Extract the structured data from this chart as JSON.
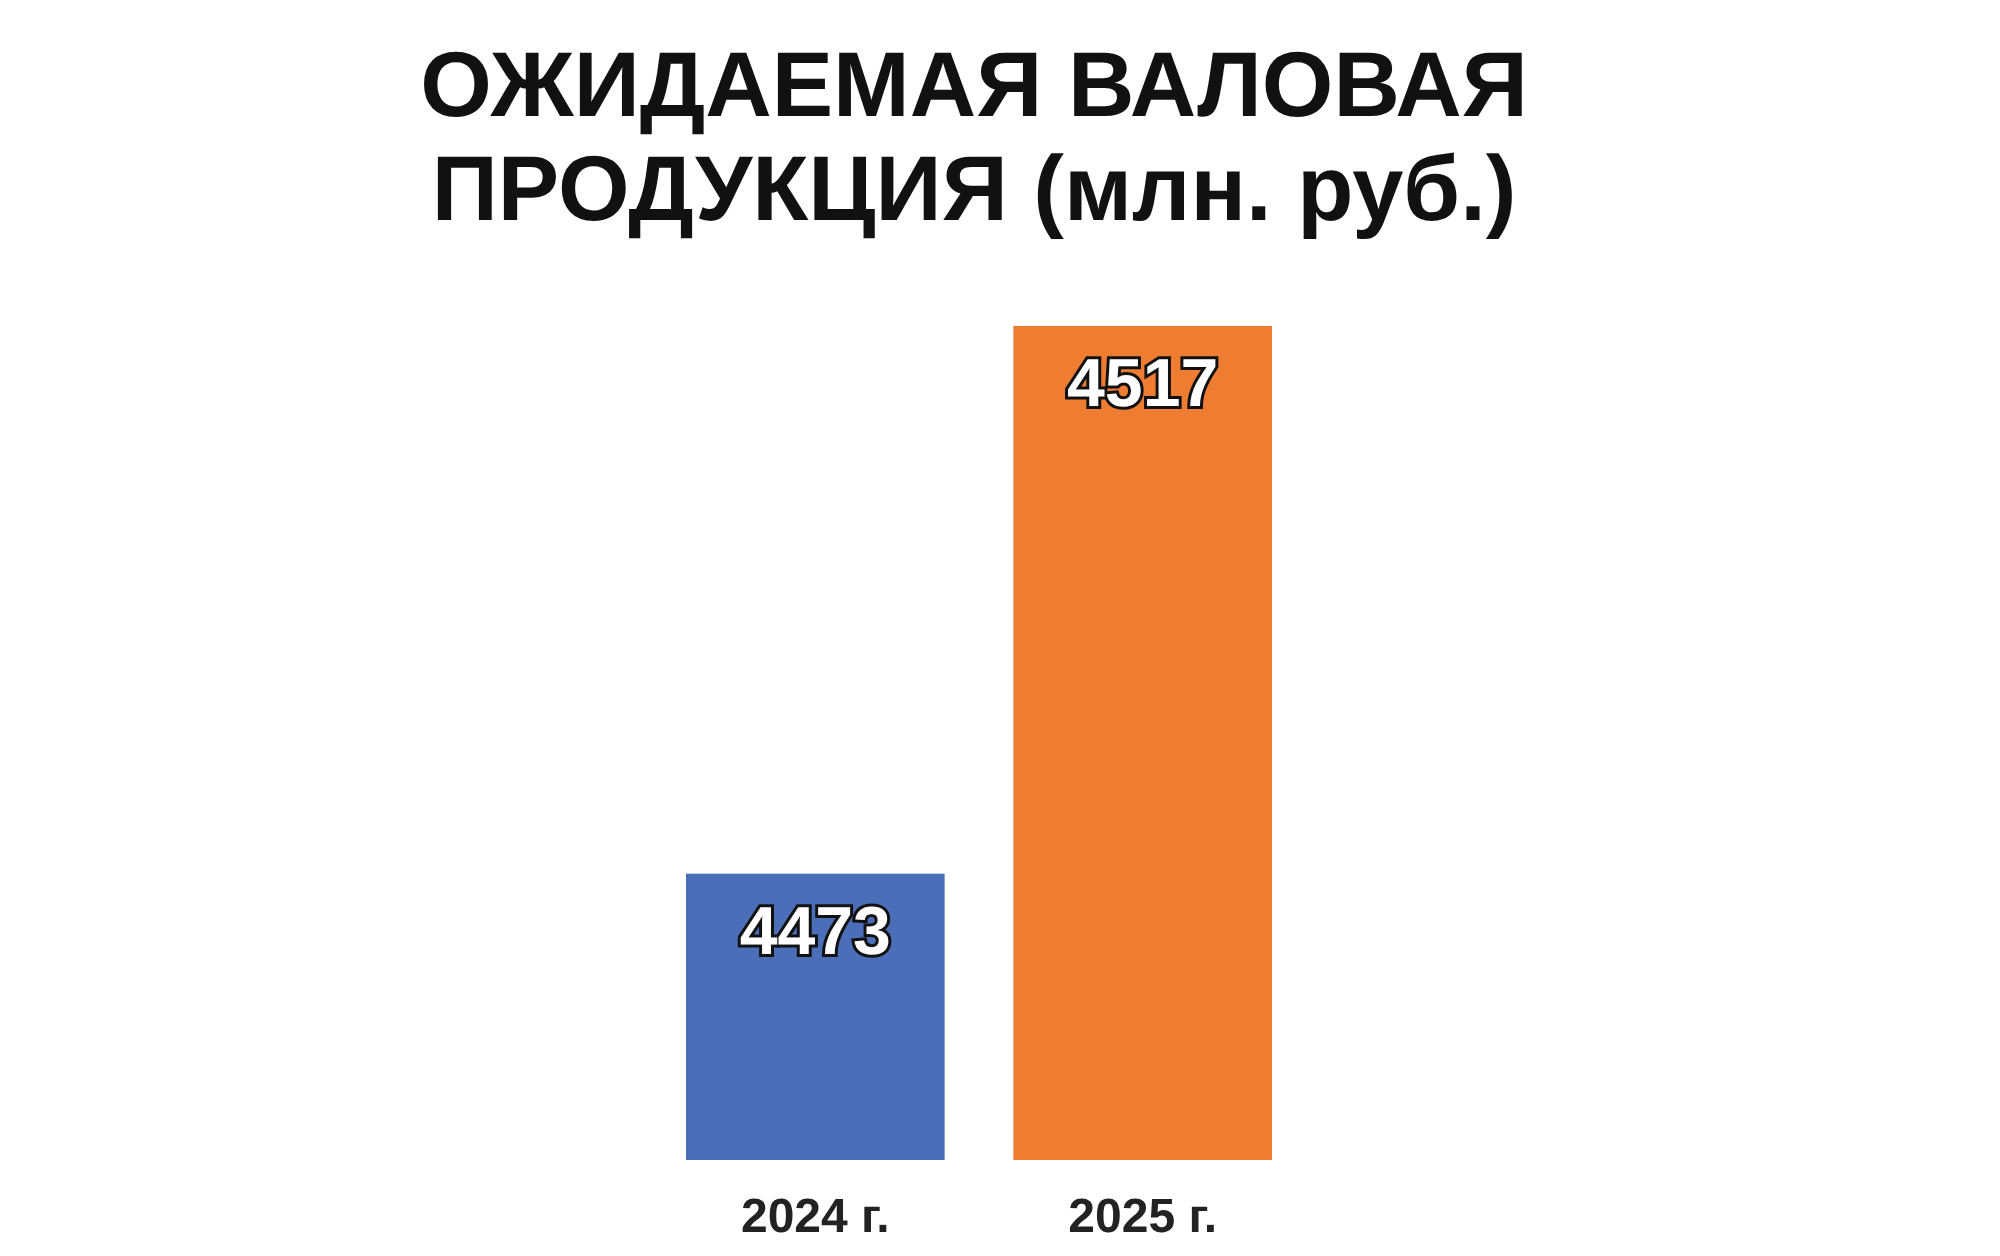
{
  "chart_data": {
    "type": "bar",
    "title": "ОЖИДАЕМАЯ ВАЛОВАЯ ПРОДУКЦИЯ (млн. руб.)",
    "categories": [
      "2024 г.",
      "2025 г."
    ],
    "values": [
      4473,
      4517
    ],
    "colors": [
      "#4a6fb8",
      "#ee7d31"
    ],
    "ylim": [
      4450,
      4517
    ],
    "tick_labels": "x",
    "data_labels": true,
    "grid": false
  }
}
